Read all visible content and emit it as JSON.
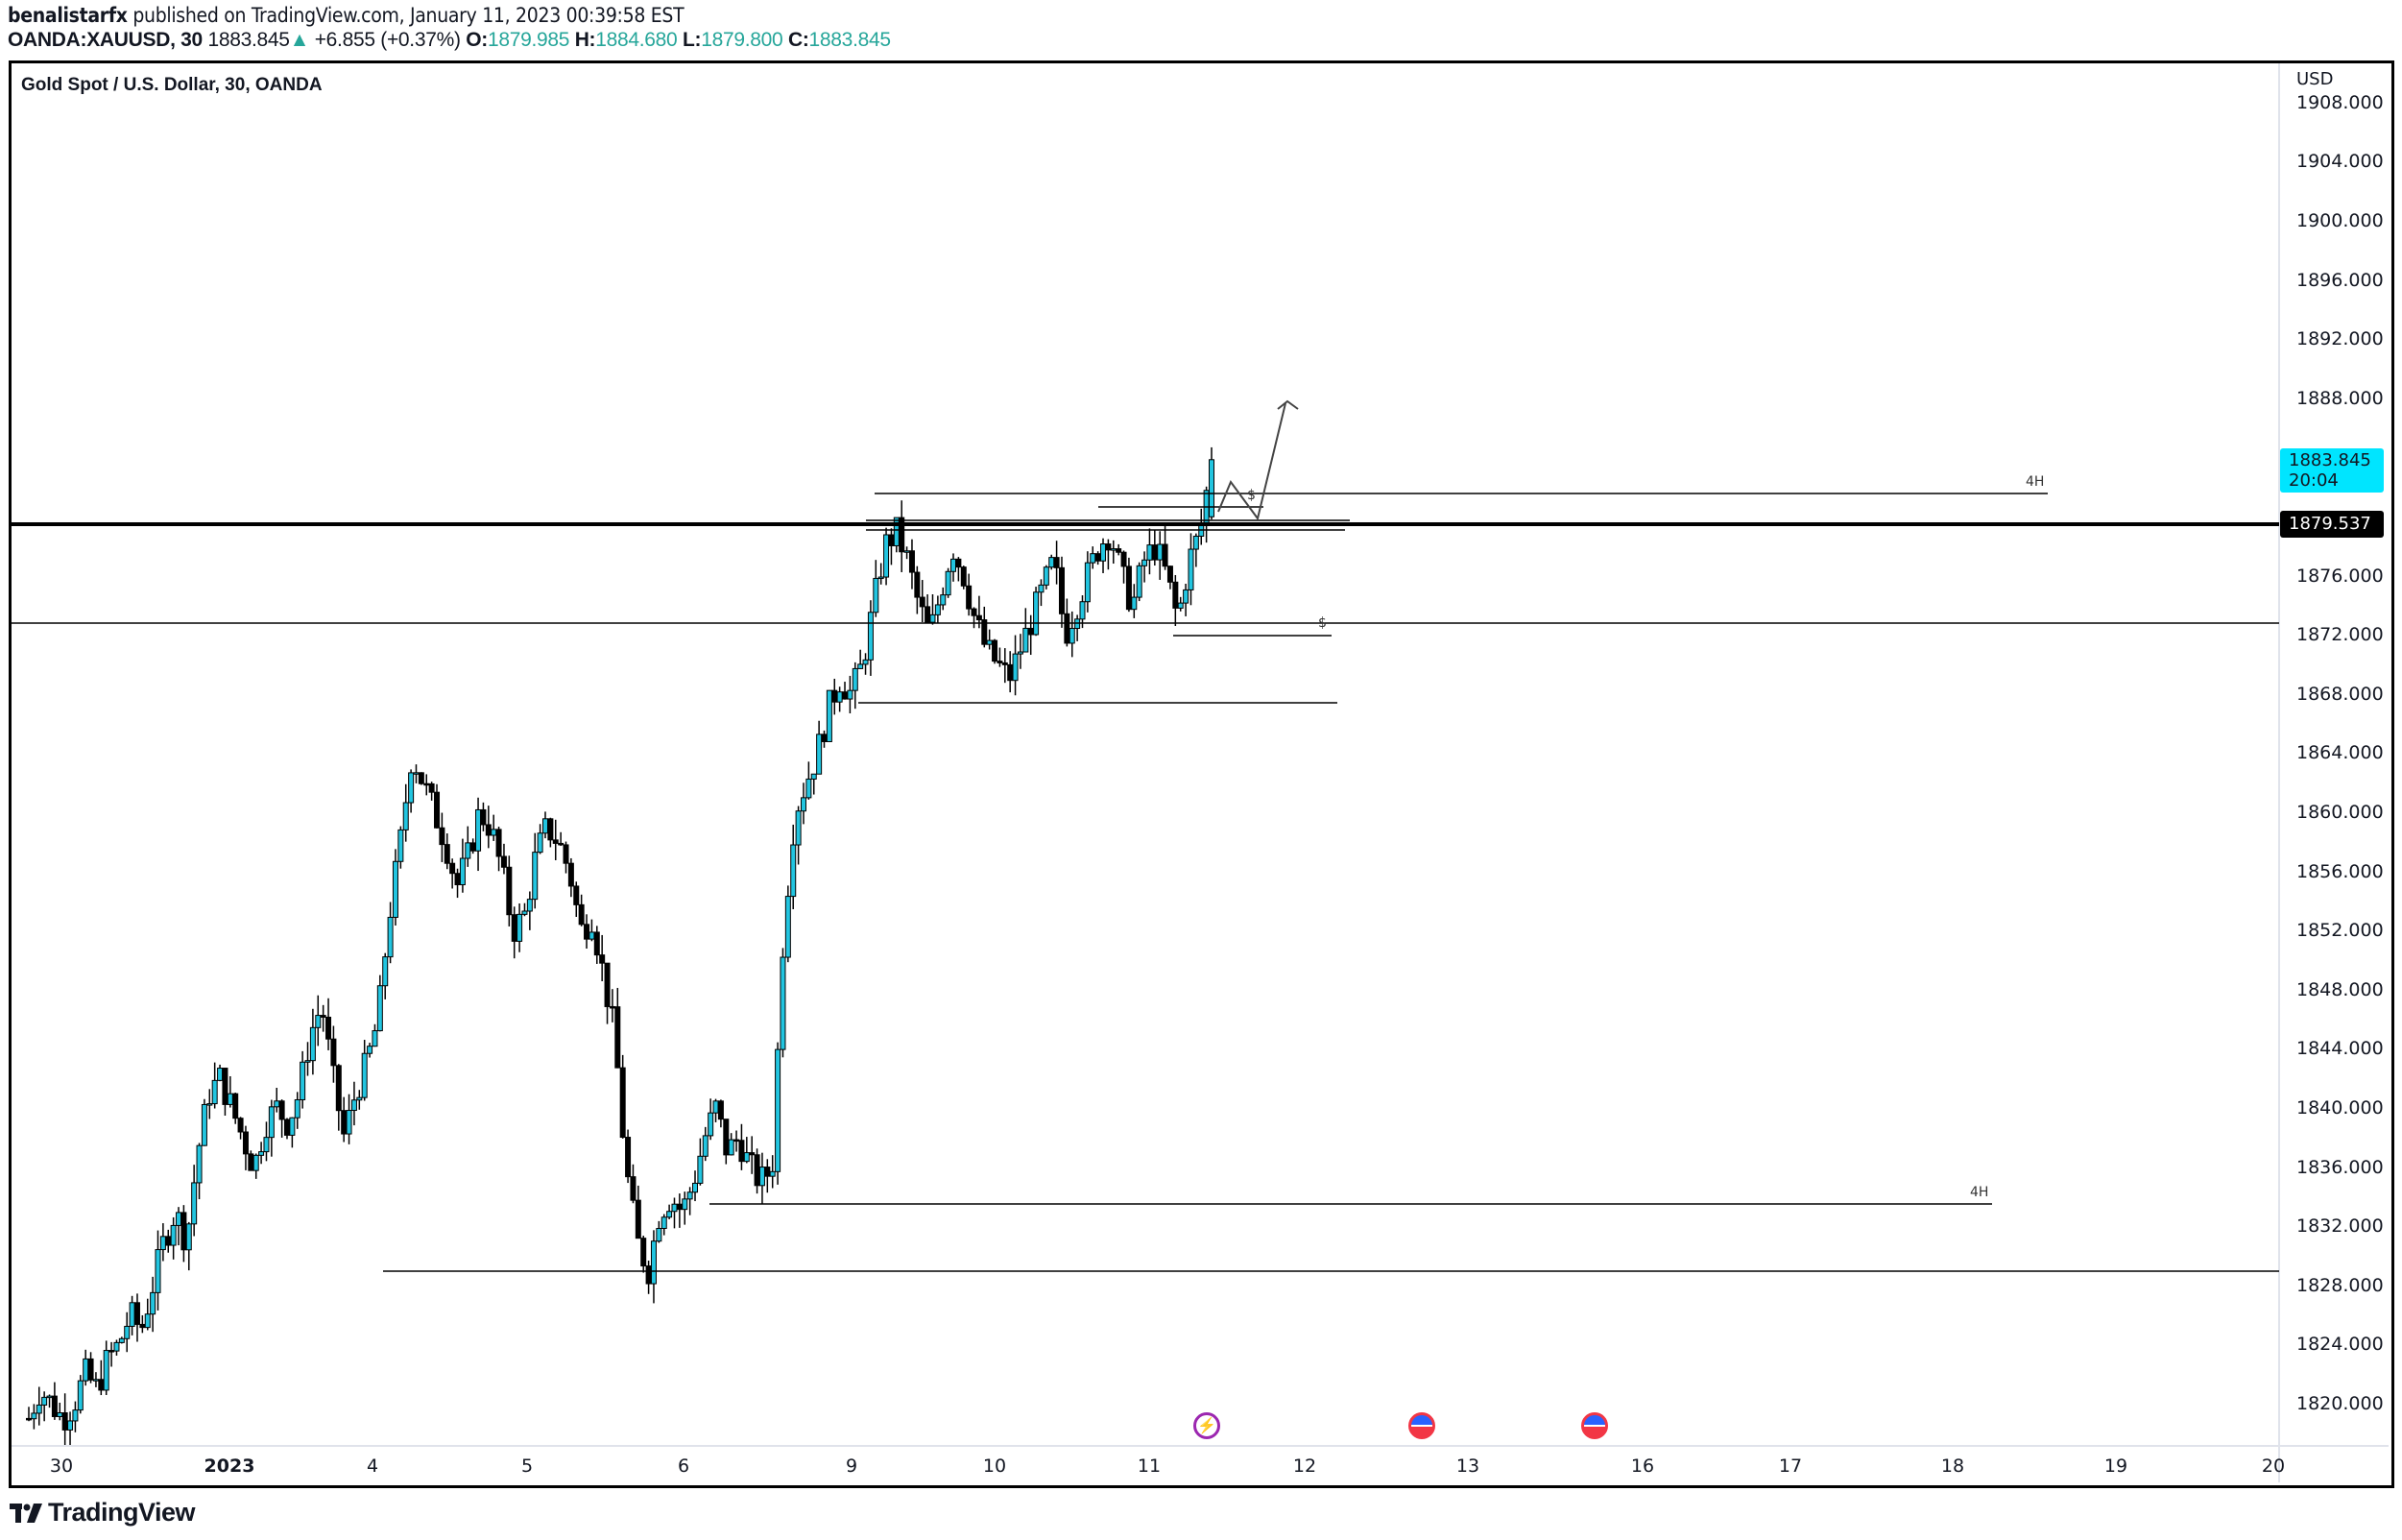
{
  "header": {
    "author": "benalistarfx",
    "published_text": " published on TradingView.com, January 11, 2023 00:39:58 EST",
    "symbol": "OANDA:XAUUSD, 30",
    "last": "1883.845",
    "change_arrow": "▲",
    "change": "+6.855 (+0.37%)",
    "o_label": "O:",
    "o": "1879.985",
    "h_label": "H:",
    "h": "1884.680",
    "l_label": "L:",
    "l": "1879.800",
    "c_label": "C:",
    "c": "1883.845"
  },
  "chart": {
    "title": "Gold Spot / U.S. Dollar, 30, OANDA",
    "currency": "USD",
    "current_price_tag": "1883.845",
    "countdown": "20:04",
    "line_price_tag": "1879.537",
    "annotations": {
      "fourH_top": "4H",
      "fourH_bottom": "4H",
      "dollar_top": "$",
      "dollar_bottom": "$"
    },
    "events": [
      {
        "icon": "lightning-icon"
      },
      {
        "icon": "us-flag-icon"
      },
      {
        "icon": "us-flag-icon"
      }
    ]
  },
  "footer": {
    "brand": "TradingView"
  },
  "colors": {
    "bull": "#22c5e0",
    "bear": "#000000",
    "current_tag": "#00e5ff",
    "change": "#26a69a"
  },
  "chart_data": {
    "type": "candlestick",
    "title": "Gold Spot / U.S. Dollar, 30, OANDA",
    "symbol": "OANDA:XAUUSD",
    "interval": "30",
    "ylabel": "USD",
    "ylim": [
      1818,
      1909
    ],
    "y_ticks": [
      1820,
      1824,
      1828,
      1832,
      1836,
      1840,
      1844,
      1848,
      1852,
      1856,
      1860,
      1864,
      1868,
      1872,
      1876,
      1880,
      1884,
      1888,
      1892,
      1896,
      1900,
      1904,
      1908
    ],
    "x_ticks": [
      "30",
      "2023",
      "4",
      "5",
      "6",
      "9",
      "10",
      "11",
      "12",
      "13",
      "16",
      "17",
      "18",
      "19",
      "20"
    ],
    "last_ohlc": {
      "open": 1879.985,
      "high": 1884.68,
      "low": 1879.8,
      "close": 1883.845
    },
    "horizontal_levels": [
      {
        "price": 1879.537,
        "style": "thick",
        "label": ""
      },
      {
        "price": 1883.0,
        "label": "4H"
      },
      {
        "price": 1872.8,
        "label": ""
      },
      {
        "price": 1872.0,
        "label": "$"
      },
      {
        "price": 1867.3,
        "label": ""
      },
      {
        "price": 1833.8,
        "label": "4H"
      },
      {
        "price": 1829.0,
        "label": ""
      }
    ],
    "close_path": [
      1819,
      1821,
      1820,
      1819,
      1820,
      1822,
      1821,
      1823,
      1824,
      1826,
      1825,
      1828,
      1831,
      1833,
      1831,
      1837,
      1841,
      1842,
      1840,
      1838,
      1836,
      1839,
      1840,
      1839,
      1841,
      1845,
      1847,
      1842,
      1838,
      1841,
      1843,
      1846,
      1853,
      1858,
      1864,
      1862,
      1860,
      1858,
      1855,
      1857,
      1860,
      1859,
      1856,
      1852,
      1853,
      1857,
      1859,
      1858,
      1856,
      1852,
      1853,
      1849,
      1845,
      1836,
      1831,
      1829,
      1833,
      1834,
      1833,
      1835,
      1838,
      1840,
      1837,
      1838,
      1836,
      1835,
      1836,
      1852,
      1860,
      1862,
      1864,
      1867,
      1869,
      1868,
      1870,
      1874,
      1878,
      1879,
      1877,
      1874,
      1872,
      1875,
      1878,
      1876,
      1873,
      1871,
      1870,
      1869,
      1871,
      1873,
      1875,
      1877,
      1872,
      1874,
      1876,
      1878,
      1879,
      1876,
      1874,
      1877,
      1878,
      1876,
      1873,
      1877,
      1879,
      1883.845
    ]
  }
}
